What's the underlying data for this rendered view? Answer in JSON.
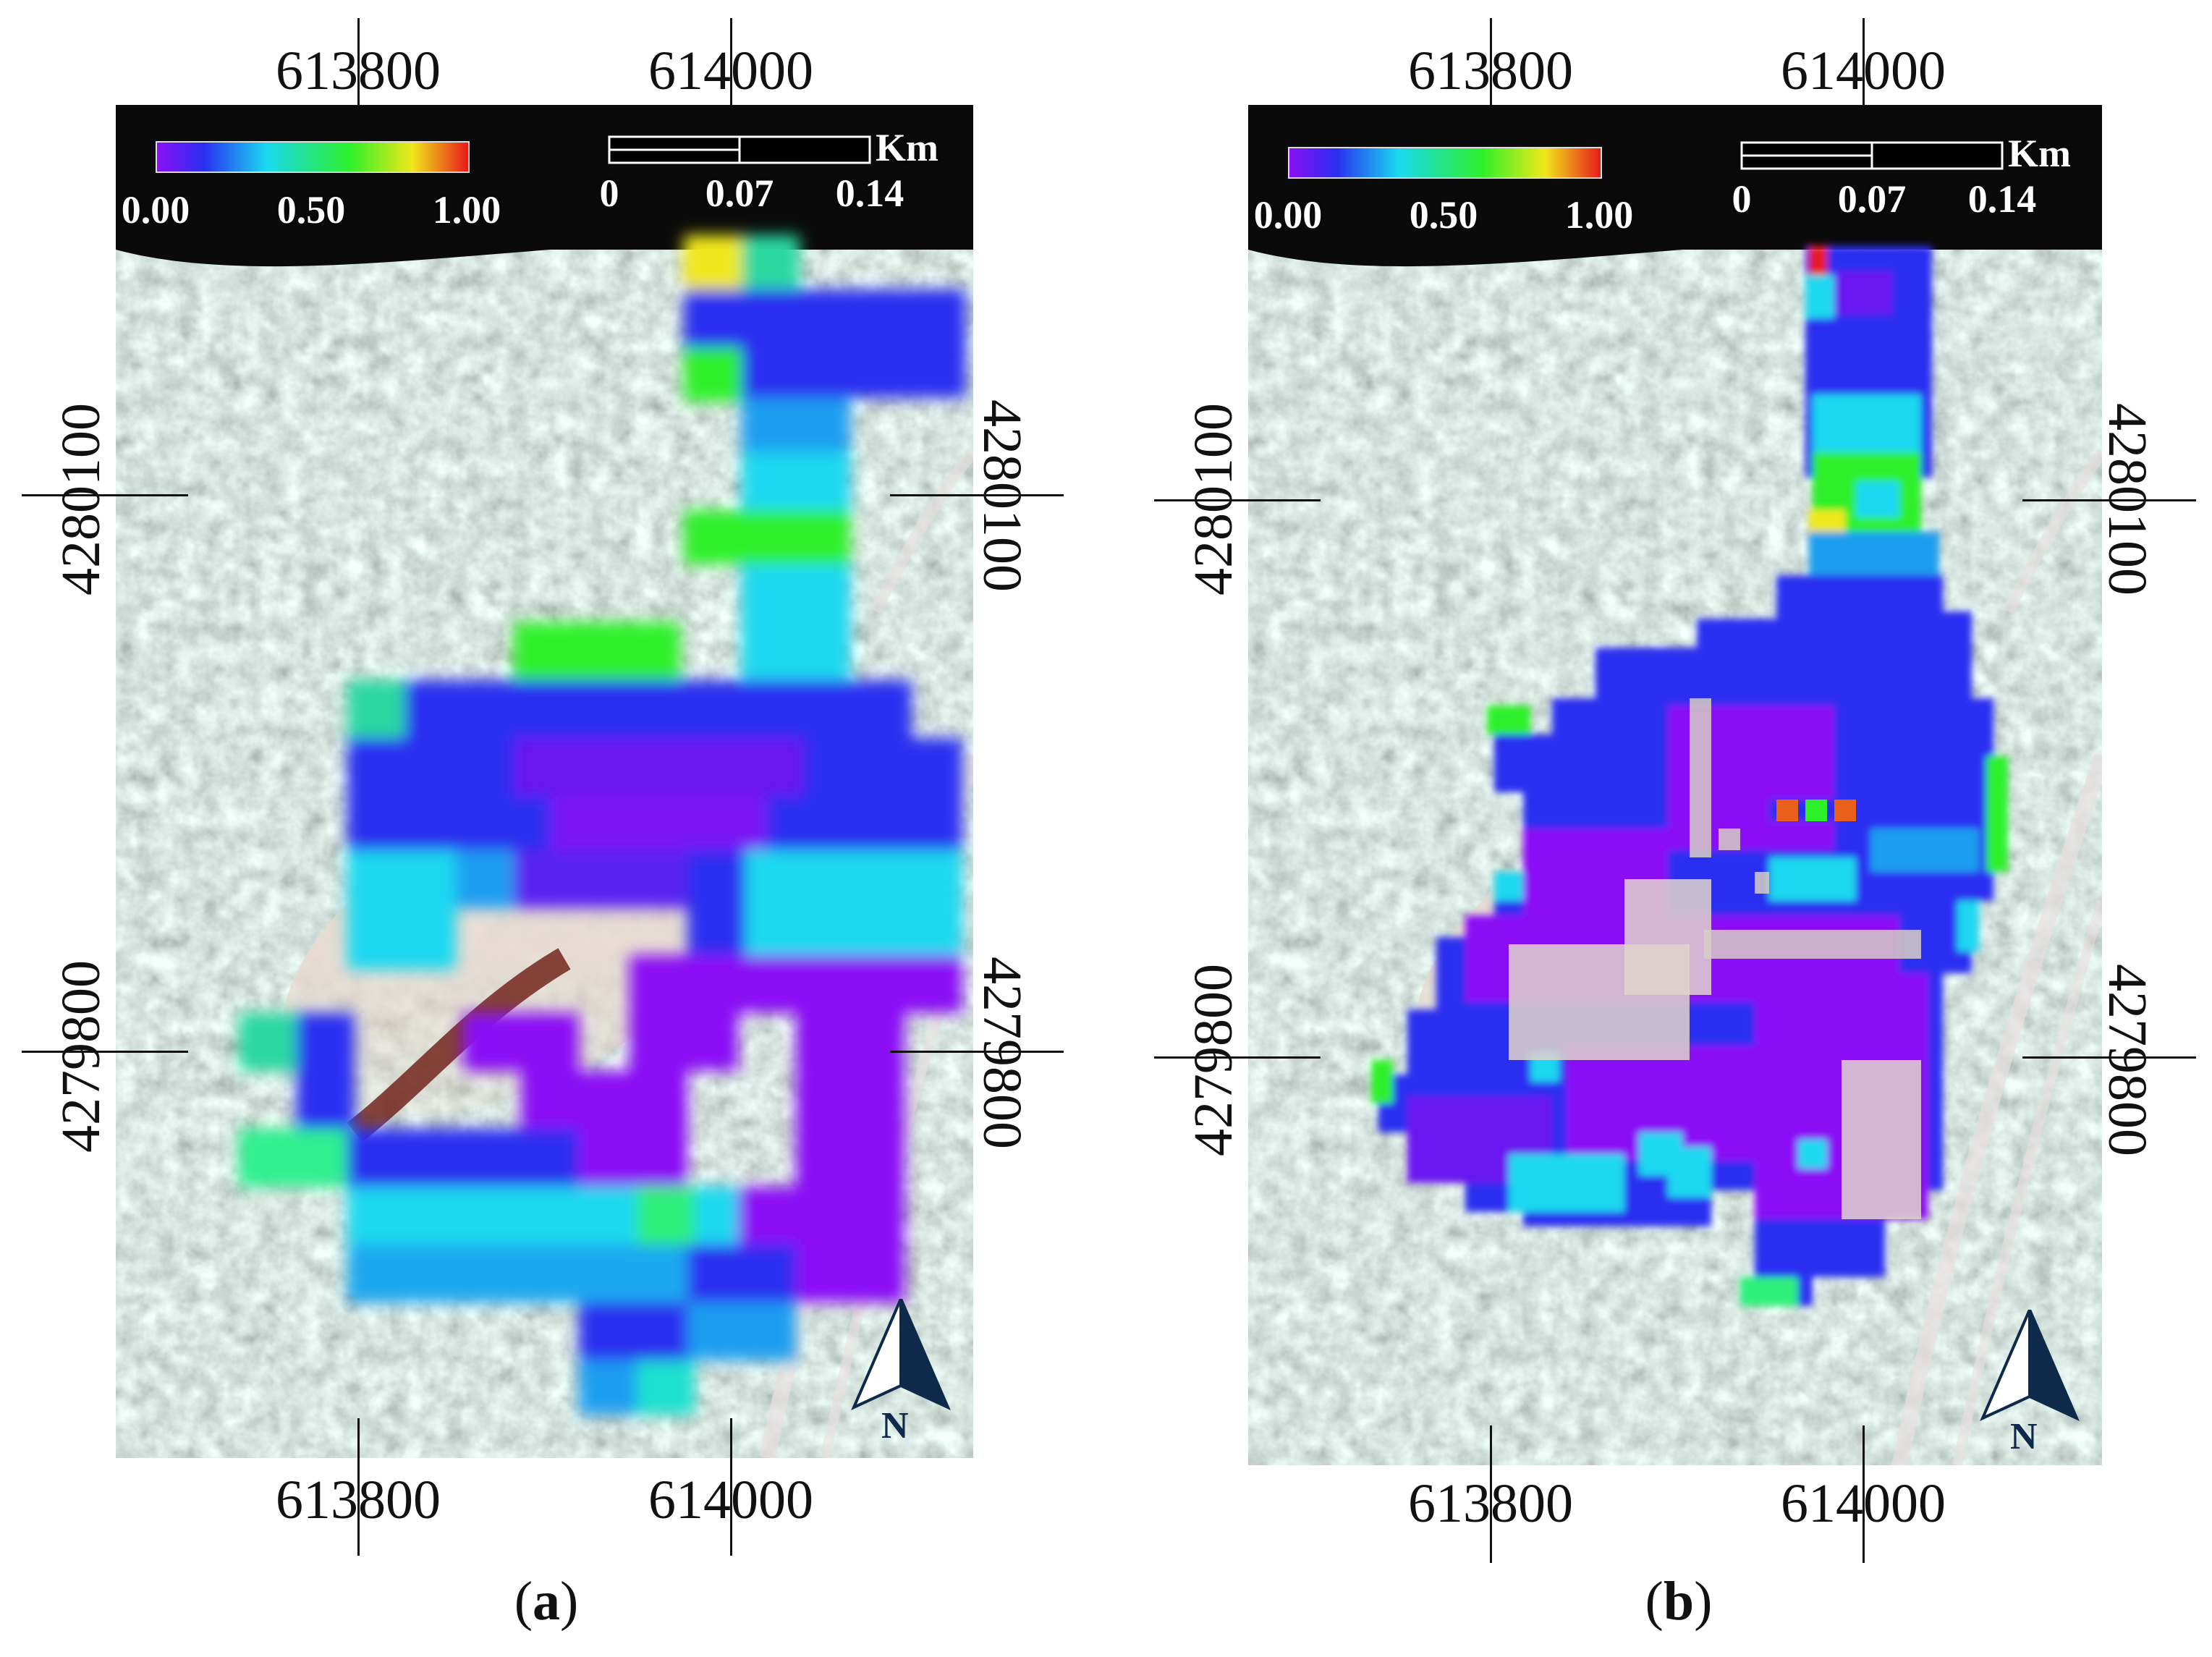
{
  "panels": [
    {
      "id": "a",
      "caption_open": "(",
      "caption_letter": "a",
      "caption_close": ")",
      "top_ticks": [
        "613800",
        "614000"
      ],
      "bottom_ticks": [
        "613800",
        "614000"
      ],
      "left_ticks": [
        "4280100",
        "4279800"
      ],
      "right_ticks": [
        "4280100",
        "4279800"
      ],
      "colorbar_labels": [
        "0.00",
        "0.50",
        "1.00"
      ],
      "scalebar_unit": "Km",
      "scalebar_labels": [
        "0",
        "0.07",
        "0.14"
      ],
      "north_label": "N"
    },
    {
      "id": "b",
      "caption_open": "(",
      "caption_letter": "b",
      "caption_close": ")",
      "top_ticks": [
        "613800",
        "614000"
      ],
      "bottom_ticks": [
        "613800",
        "614000"
      ],
      "left_ticks": [
        "4280100",
        "4279800"
      ],
      "right_ticks": [
        "4280100",
        "4279800"
      ],
      "colorbar_labels": [
        "0.00",
        "0.50",
        "1.00"
      ],
      "scalebar_unit": "Km",
      "scalebar_labels": [
        "0",
        "0.07",
        "0.14"
      ],
      "north_label": "N"
    }
  ],
  "colors": {
    "violet": "#8a10f5",
    "blue": "#2a2ef0",
    "cyan": "#1ad8f0",
    "green": "#2ef02a",
    "yellow": "#f0e81a",
    "red": "#e81a1a"
  }
}
